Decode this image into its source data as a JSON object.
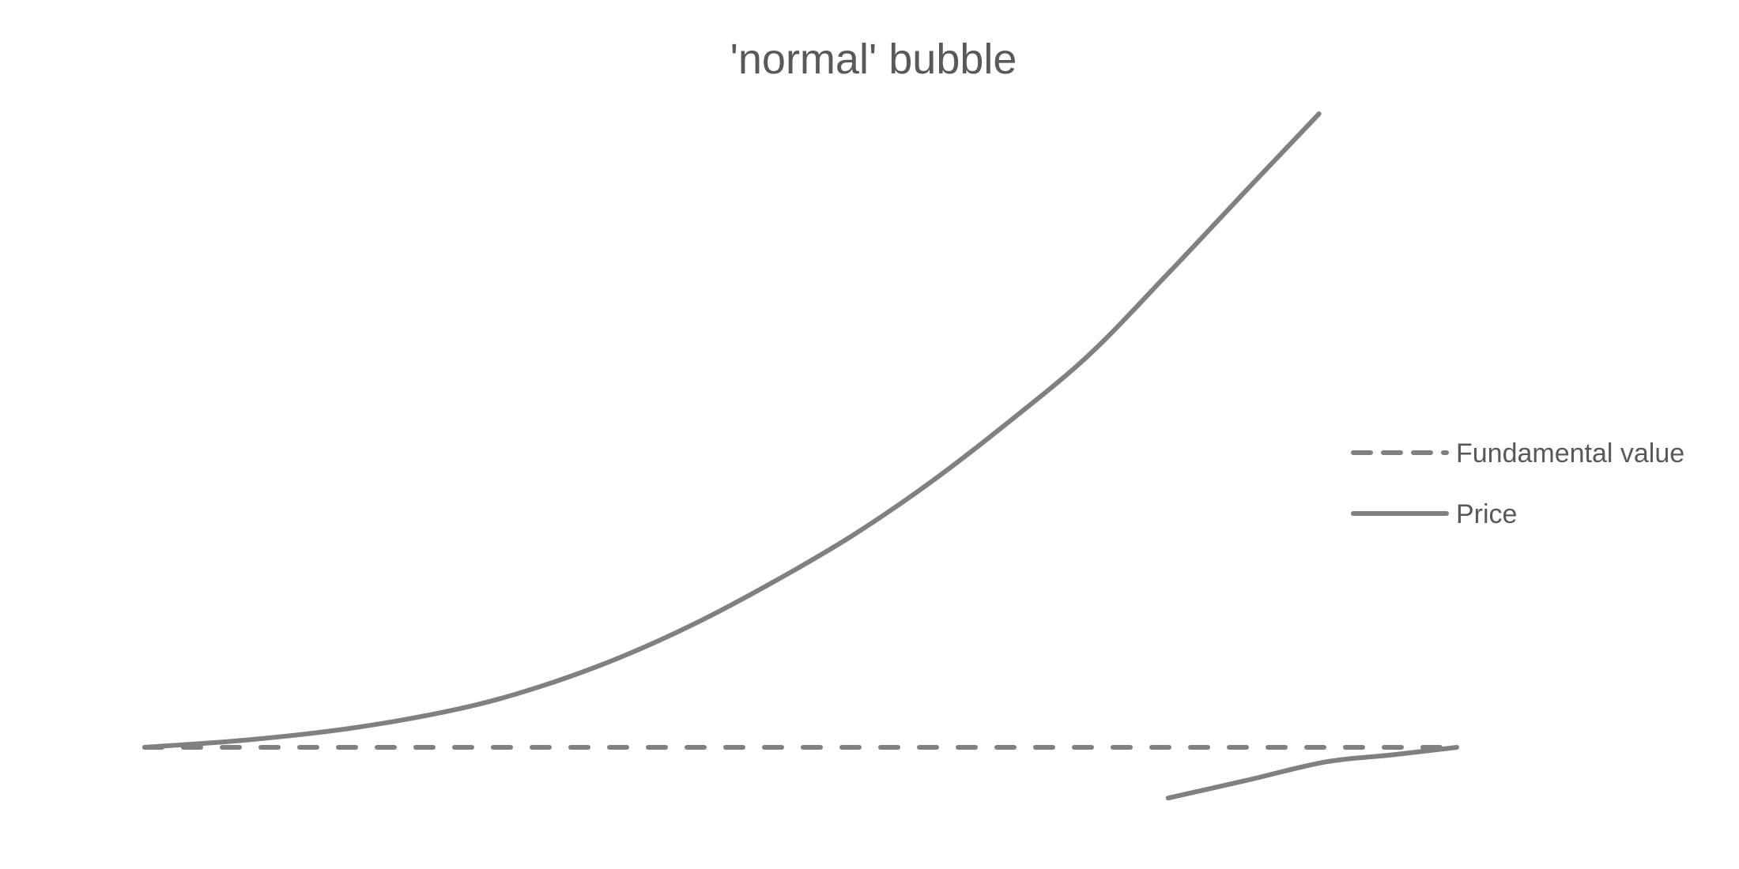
{
  "chart_data": {
    "type": "line",
    "title": "'normal' bubble",
    "xlabel": "",
    "ylabel": "",
    "grid": false,
    "axes_visible": false,
    "legend_position": "right",
    "line_color": "#808080",
    "text_color": "#595959",
    "x_range": [
      0,
      100
    ],
    "y_range": [
      -8,
      100
    ],
    "series": [
      {
        "name": "Fundamental value",
        "style": "dashed",
        "points": [
          [
            0,
            0
          ],
          [
            100,
            0
          ]
        ]
      },
      {
        "name": "Price",
        "style": "solid",
        "segments": [
          [
            [
              0,
              0
            ],
            [
              8,
              1.2
            ],
            [
              16,
              3.1
            ],
            [
              24,
              6.1
            ],
            [
              30,
              9.5
            ],
            [
              36,
              14.0
            ],
            [
              42,
              19.6
            ],
            [
              48,
              26.2
            ],
            [
              54,
              33.5
            ],
            [
              60,
              42.0
            ],
            [
              66,
              51.6
            ],
            [
              72,
              62.0
            ],
            [
              78,
              74.8
            ],
            [
              84,
              88.0
            ],
            [
              89.5,
              100
            ]
          ],
          [
            [
              78,
              -8
            ],
            [
              84,
              -5.2
            ],
            [
              90,
              -2.3
            ],
            [
              95,
              -1.2
            ],
            [
              100,
              0
            ]
          ]
        ]
      }
    ]
  }
}
